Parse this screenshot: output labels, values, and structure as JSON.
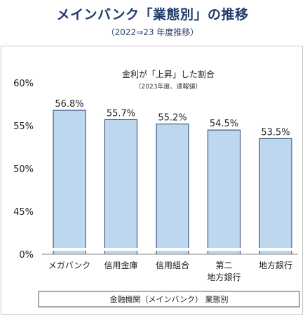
{
  "header": {
    "title": "メインバンク「業態別」の推移",
    "subtitle": "（2022⇒23 年度推移）"
  },
  "chart_data": {
    "type": "bar",
    "title": "金利が「上昇」した割合",
    "subtitle": "（2023年度、速報値）",
    "categories": [
      [
        "メガバンク"
      ],
      [
        "信用金庫"
      ],
      [
        "信用組合"
      ],
      [
        "第二",
        "地方銀行"
      ],
      [
        "地方銀行"
      ]
    ],
    "values": [
      56.8,
      55.7,
      55.2,
      54.5,
      53.5
    ],
    "value_labels": [
      "56.8%",
      "55.7%",
      "55.2%",
      "54.5%",
      "53.5%"
    ],
    "y_ticks": [
      "60%",
      "55%",
      "50%",
      "45%",
      "0%"
    ],
    "ylim": [
      40,
      60
    ],
    "axis_break": true,
    "xlabel": "金融機関（メインバンク） 業態別",
    "bar_color": "#bdd7ee",
    "bar_stroke": "#1f3a6b",
    "grid": false
  }
}
